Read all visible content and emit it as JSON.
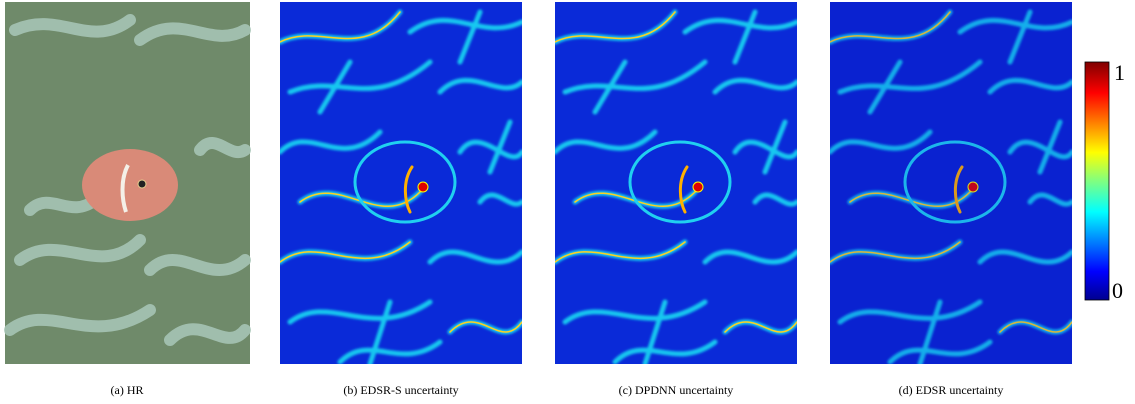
{
  "panels": [
    {
      "caption": "(a) HR"
    },
    {
      "caption": "(b) EDSR-S uncertainty"
    },
    {
      "caption": "(c) DPDNN uncertainty"
    },
    {
      "caption": "(d) EDSR uncertainty"
    }
  ],
  "colorbar": {
    "max_label": "1",
    "min_label": "0"
  }
}
